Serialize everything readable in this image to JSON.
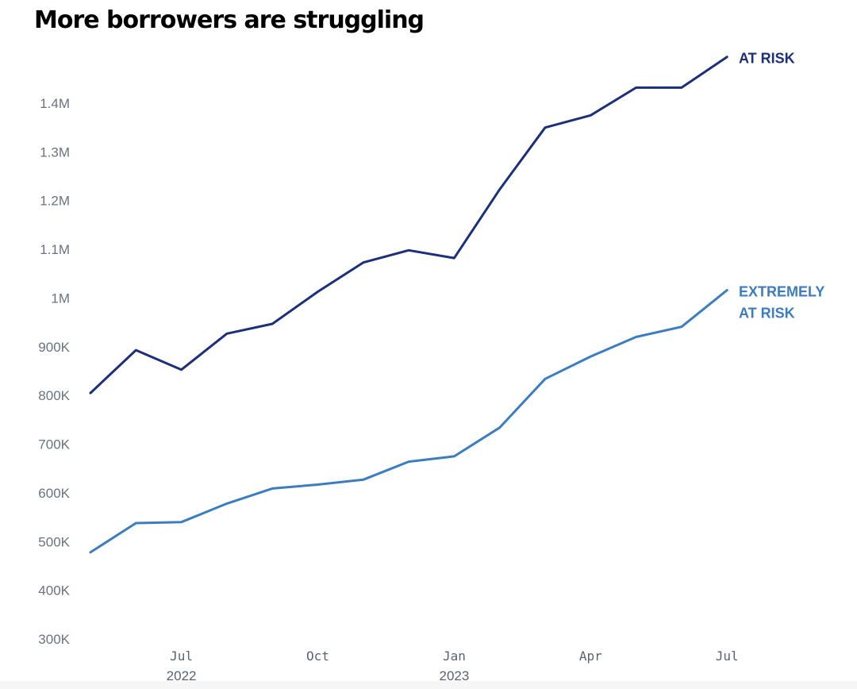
{
  "chart_data": {
    "type": "line",
    "title": "More borrowers are struggling",
    "xlabel": "",
    "ylabel": "",
    "x": [
      "2022-05",
      "2022-06",
      "2022-07",
      "2022-08",
      "2022-09",
      "2022-10",
      "2022-11",
      "2022-12",
      "2023-01",
      "2023-02",
      "2023-03",
      "2023-04",
      "2023-05",
      "2023-06",
      "2023-07"
    ],
    "x_ticks": [
      {
        "x": "2022-07",
        "label": "Jul",
        "sublabel": "2022"
      },
      {
        "x": "2022-10",
        "label": "Oct",
        "sublabel": ""
      },
      {
        "x": "2023-01",
        "label": "Jan",
        "sublabel": "2023"
      },
      {
        "x": "2023-04",
        "label": "Apr",
        "sublabel": ""
      },
      {
        "x": "2023-07",
        "label": "Jul",
        "sublabel": ""
      }
    ],
    "y_ticks": [
      {
        "value": 300000,
        "label": "300K"
      },
      {
        "value": 400000,
        "label": "400K"
      },
      {
        "value": 500000,
        "label": "500K"
      },
      {
        "value": 600000,
        "label": "600K"
      },
      {
        "value": 700000,
        "label": "700K"
      },
      {
        "value": 800000,
        "label": "800K"
      },
      {
        "value": 900000,
        "label": "900K"
      },
      {
        "value": 1000000,
        "label": "1M"
      },
      {
        "value": 1100000,
        "label": "1.1M"
      },
      {
        "value": 1200000,
        "label": "1.2M"
      },
      {
        "value": 1300000,
        "label": "1.3M"
      },
      {
        "value": 1400000,
        "label": "1.4M"
      }
    ],
    "ylim": [
      300000,
      1500000
    ],
    "grid": false,
    "legend": "direct labels at line ends",
    "series": [
      {
        "name": "AT RISK",
        "label_lines": [
          "AT RISK"
        ],
        "color": "#1b2f7a",
        "values": [
          805000,
          893000,
          853000,
          927000,
          947000,
          1013000,
          1073000,
          1098000,
          1082000,
          1223000,
          1350000,
          1375000,
          1432000,
          1432000,
          1495000
        ]
      },
      {
        "name": "EXTREMELY AT RISK",
        "label_lines": [
          "EXTREMELY",
          "AT RISK"
        ],
        "color": "#3b7dc0",
        "values": [
          478000,
          538000,
          540000,
          578000,
          609000,
          617000,
          627000,
          664000,
          675000,
          734000,
          834000,
          880000,
          920000,
          941000,
          1016000
        ]
      }
    ]
  }
}
